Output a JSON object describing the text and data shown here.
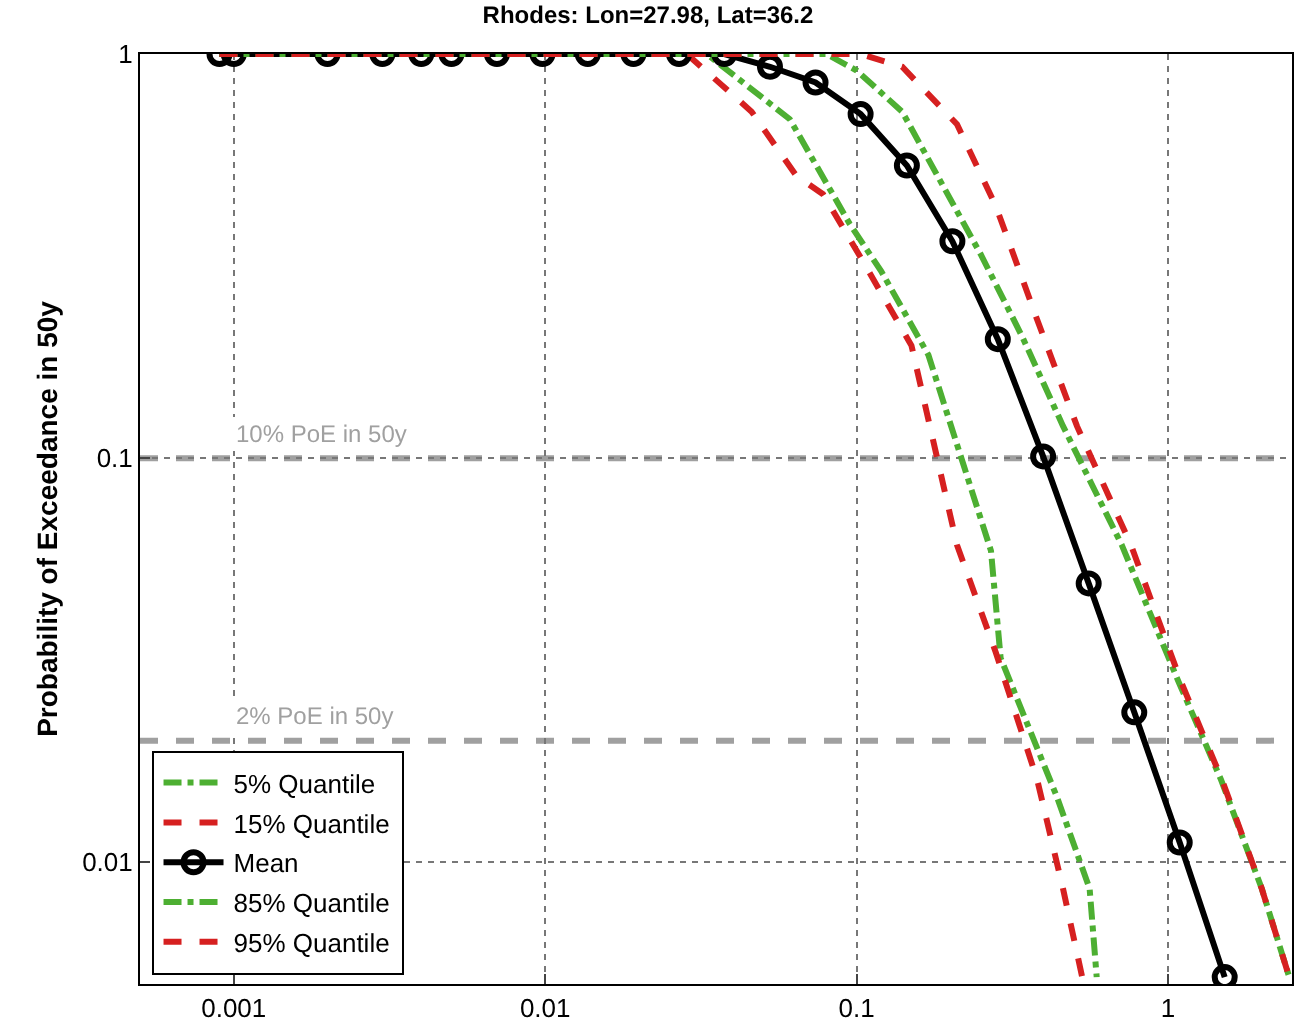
{
  "chart_data": {
    "type": "line",
    "title": "Rhodes: Lon=27.98, Lat=36.2",
    "ylabel": "Probability of Exceedance in 50y",
    "log": "xy",
    "xlim": [
      0.0005,
      2.5
    ],
    "ylim": [
      0.005,
      1
    ],
    "xticks": [
      0.001,
      0.01,
      0.1,
      1
    ],
    "yticks": [
      0.01,
      0.1,
      1
    ],
    "grid": true,
    "legend": "bottom left",
    "ref_lines": [
      {
        "axis": "y",
        "value": 0.1,
        "label": "10% PoE in 50y",
        "color": "#a0a0a0",
        "line_style": "dashed"
      },
      {
        "axis": "y",
        "value": 0.02,
        "label": "2% PoE in 50y",
        "color": "#a0a0a0",
        "line_style": "dashed"
      }
    ],
    "series": [
      {
        "name": "5% Quantile",
        "color": "#4daf32",
        "line_style": "dashdot",
        "marker": "none",
        "x": [
          0.0009,
          0.033,
          0.061,
          0.095,
          0.12,
          0.17,
          0.27,
          0.29,
          0.44,
          0.56,
          0.59
        ],
        "values": [
          1,
          1,
          0.69,
          0.38,
          0.29,
          0.18,
          0.059,
          0.032,
          0.0145,
          0.0086,
          0.0052
        ]
      },
      {
        "name": "15% Quantile",
        "color": "#d62020",
        "line_style": "dashed",
        "marker": "none",
        "x": [
          0.0009,
          0.0285,
          0.046,
          0.064,
          0.078,
          0.104,
          0.15,
          0.21,
          0.28,
          0.38,
          0.46,
          0.53
        ],
        "values": [
          1,
          1,
          0.72,
          0.5,
          0.45,
          0.31,
          0.19,
          0.061,
          0.033,
          0.016,
          0.0086,
          0.0052
        ]
      },
      {
        "name": "Mean",
        "color": "#000000",
        "line_style": "solid",
        "marker": "circle",
        "x": [
          0.0009,
          0.001,
          0.002,
          0.003,
          0.004,
          0.005,
          0.007,
          0.0098,
          0.0137,
          0.0192,
          0.0269,
          0.0376,
          0.0527,
          0.0738,
          0.103,
          0.145,
          0.203,
          0.284,
          0.397,
          0.556,
          0.779,
          1.09,
          1.52
        ],
        "values": [
          1,
          1,
          1,
          1,
          1,
          1,
          1,
          1,
          1,
          1,
          1,
          1,
          0.93,
          0.85,
          0.71,
          0.53,
          0.344,
          0.197,
          0.101,
          0.049,
          0.0235,
          0.0112,
          0.0052
        ]
      },
      {
        "name": "85% Quantile",
        "color": "#4daf32",
        "line_style": "dashdot",
        "marker": "none",
        "x": [
          0.0009,
          0.08,
          0.1,
          0.14,
          0.25,
          0.34,
          0.46,
          0.71,
          1.08,
          1.48,
          2.0,
          2.45
        ],
        "values": [
          1,
          1,
          0.91,
          0.72,
          0.32,
          0.2,
          0.12,
          0.061,
          0.028,
          0.016,
          0.0086,
          0.0052
        ]
      },
      {
        "name": "95% Quantile",
        "color": "#d62020",
        "line_style": "dashed",
        "marker": "none",
        "x": [
          0.0009,
          0.103,
          0.14,
          0.21,
          0.28,
          0.38,
          0.51,
          0.76,
          1.1,
          1.49,
          2.0,
          2.45
        ],
        "values": [
          1,
          1,
          0.93,
          0.67,
          0.42,
          0.22,
          0.12,
          0.061,
          0.028,
          0.016,
          0.0086,
          0.0052
        ]
      }
    ]
  }
}
